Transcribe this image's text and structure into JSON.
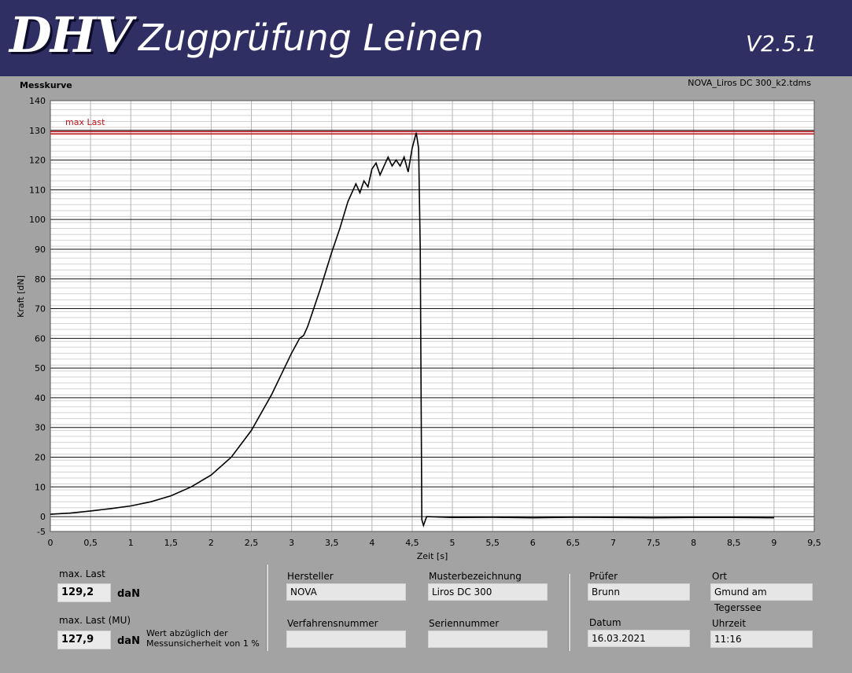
{
  "header": {
    "logo_text": "DHV",
    "title": "Zugprüfung Leinen",
    "version": "V2.5.1"
  },
  "chart_panel": {
    "label": "Messkurve",
    "file_name": "NOVA_Liros DC 300_k2.tdms"
  },
  "chart_data": {
    "type": "line",
    "xlabel": "Zeit [s]",
    "ylabel": "Kraft [dN]",
    "xlim": [
      0,
      9.5
    ],
    "ylim": [
      -5,
      140
    ],
    "x_ticks": [
      "0",
      "0,5",
      "1",
      "1,5",
      "2",
      "2,5",
      "3",
      "3,5",
      "4",
      "4,5",
      "5",
      "5,5",
      "6",
      "6,5",
      "7",
      "7,5",
      "8",
      "8,5",
      "9",
      "9,5"
    ],
    "y_ticks": [
      "-5",
      "0",
      "10",
      "20",
      "30",
      "40",
      "50",
      "60",
      "70",
      "80",
      "90",
      "100",
      "110",
      "120",
      "130",
      "140"
    ],
    "grid": true,
    "reference_line": {
      "label": "max Last",
      "value": 129.2,
      "color": "#c0141c"
    },
    "series": [
      {
        "color": "#000000",
        "points": [
          [
            0,
            0.8
          ],
          [
            0.25,
            1.2
          ],
          [
            0.5,
            1.9
          ],
          [
            0.75,
            2.7
          ],
          [
            1,
            3.6
          ],
          [
            1.25,
            5
          ],
          [
            1.5,
            7
          ],
          [
            1.75,
            10
          ],
          [
            2,
            14
          ],
          [
            2.25,
            20
          ],
          [
            2.5,
            29
          ],
          [
            2.75,
            41
          ],
          [
            3,
            55
          ],
          [
            3.1,
            60
          ],
          [
            3.15,
            61
          ],
          [
            3.2,
            64
          ],
          [
            3.35,
            76
          ],
          [
            3.5,
            89
          ],
          [
            3.6,
            97
          ],
          [
            3.7,
            106
          ],
          [
            3.8,
            112
          ],
          [
            3.85,
            109
          ],
          [
            3.9,
            113
          ],
          [
            3.95,
            111
          ],
          [
            4,
            117
          ],
          [
            4.05,
            119
          ],
          [
            4.1,
            115
          ],
          [
            4.15,
            118
          ],
          [
            4.2,
            121
          ],
          [
            4.25,
            118
          ],
          [
            4.3,
            120
          ],
          [
            4.35,
            118
          ],
          [
            4.4,
            121
          ],
          [
            4.45,
            116
          ],
          [
            4.5,
            124
          ],
          [
            4.55,
            129.2
          ],
          [
            4.58,
            124
          ],
          [
            4.6,
            90
          ],
          [
            4.62,
            -1
          ],
          [
            4.64,
            -3
          ],
          [
            4.68,
            0
          ],
          [
            5,
            -0.3
          ],
          [
            5.5,
            -0.2
          ],
          [
            6,
            -0.4
          ],
          [
            6.5,
            -0.2
          ],
          [
            7,
            -0.3
          ],
          [
            7.5,
            -0.4
          ],
          [
            8,
            -0.3
          ],
          [
            8.5,
            -0.3
          ],
          [
            9,
            -0.4
          ]
        ]
      }
    ]
  },
  "results": {
    "max_last_label": "max. Last",
    "max_last_value": "129,2",
    "max_last_unit": "daN",
    "max_last_mu_label": "max. Last (MU)",
    "max_last_mu_value": "127,9",
    "max_last_mu_unit": "daN",
    "note": "Wert abzüglich der Messunsicherheit von 1 %"
  },
  "info": {
    "hersteller_label": "Hersteller",
    "hersteller_value": "NOVA",
    "musterbezeichnung_label": "Musterbezeichnung",
    "musterbezeichnung_value": "Liros DC 300",
    "verfahrensnummer_label": "Verfahrensnummer",
    "verfahrensnummer_value": "",
    "seriennummer_label": "Seriennummer",
    "seriennummer_value": "",
    "pruefer_label": "Prüfer",
    "pruefer_value": "Brunn",
    "ort_label": "Ort",
    "ort_value": "Gmund am Tegerssee",
    "datum_label": "Datum",
    "datum_value": "16.03.2021",
    "uhrzeit_label": "Uhrzeit",
    "uhrzeit_value": "11:16"
  }
}
